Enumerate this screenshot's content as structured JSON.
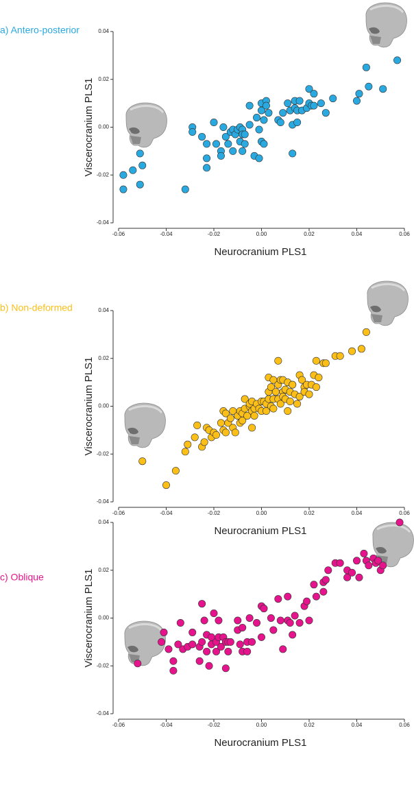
{
  "chart_data": [
    {
      "type": "scatter",
      "title": "a) Antero-posterior",
      "x_label": "Neurocranium PLS1",
      "y_label": "Viscerocranium PLS1",
      "color": "#29a9e0",
      "xlim": [
        -0.06,
        0.06
      ],
      "ylim": [
        -0.04,
        0.04
      ],
      "xticks": [
        -0.06,
        -0.04,
        -0.02,
        {
          "value": 0,
          "label": "0.00"
        },
        0.02,
        0.04,
        0.06
      ],
      "yticks": [
        -0.04,
        -0.02,
        {
          "value": 0,
          "label": "0.00"
        },
        0.02,
        0.04
      ],
      "x": [
        -0.058,
        -0.058,
        -0.054,
        -0.051,
        -0.051,
        -0.05,
        -0.032,
        -0.029,
        -0.029,
        -0.025,
        -0.023,
        -0.023,
        -0.023,
        -0.02,
        -0.019,
        -0.017,
        -0.016,
        -0.015,
        -0.014,
        -0.017,
        -0.013,
        -0.012,
        -0.012,
        -0.011,
        -0.01,
        -0.009,
        -0.009,
        -0.008,
        -0.008,
        -0.007,
        -0.007,
        -0.008,
        -0.005,
        -0.005,
        -0.003,
        -0.002,
        -0.001,
        -0.001,
        0,
        0,
        0.001,
        0,
        0.001,
        0.002,
        0.002,
        0.003,
        0.007,
        0.008,
        0.009,
        0.011,
        0.012,
        0.013,
        0.013,
        0.014,
        0.014,
        0.015,
        0.015,
        0.016,
        0.017,
        0.019,
        0.02,
        0.02,
        0.021,
        0.022,
        0.022,
        0.025,
        0.027,
        0.03,
        0.04,
        0.041,
        0.044,
        0.045,
        0.051,
        0.057
      ],
      "y": [
        -0.026,
        -0.02,
        -0.018,
        -0.011,
        -0.024,
        -0.016,
        -0.026,
        0,
        -0.002,
        -0.004,
        -0.007,
        -0.017,
        -0.013,
        0.002,
        -0.007,
        -0.01,
        0,
        -0.004,
        -0.007,
        -0.012,
        -0.002,
        -0.001,
        -0.01,
        -0.003,
        -0.001,
        -0.006,
        0,
        -0.001,
        -0.003,
        -0.003,
        -0.007,
        -0.01,
        0.009,
        0.001,
        -0.012,
        0.004,
        -0.001,
        -0.013,
        0.007,
        0.01,
        0.003,
        -0.006,
        -0.007,
        0.011,
        0.009,
        0.006,
        0.003,
        0.002,
        0.006,
        0.01,
        0.007,
        -0.011,
        0.001,
        0.008,
        0.011,
        0.002,
        0.007,
        0.011,
        0.007,
        0.008,
        0.016,
        0.01,
        0.009,
        0.014,
        0.009,
        0.01,
        0.006,
        0.012,
        0.011,
        0.014,
        0.025,
        0.017,
        0.016,
        0.028
      ]
    },
    {
      "type": "scatter",
      "title": "b) Non-deformed",
      "x_label": "Neurocranium PLS1",
      "y_label": "Viscerocranium PLS1",
      "color": "#fbbf17",
      "xlim": [
        -0.06,
        0.06
      ],
      "ylim": [
        -0.04,
        0.04
      ],
      "xticks": [
        -0.06,
        -0.04,
        -0.02,
        {
          "value": 0,
          "label": "0.00"
        },
        0.02,
        0.04,
        0.06
      ],
      "yticks": [
        -0.04,
        -0.02,
        {
          "value": 0,
          "label": "0.00"
        },
        0.02,
        0.04
      ],
      "x": [
        -0.05,
        -0.04,
        -0.036,
        -0.032,
        -0.031,
        -0.028,
        -0.027,
        -0.025,
        -0.024,
        -0.023,
        -0.022,
        -0.021,
        -0.02,
        -0.019,
        -0.017,
        -0.016,
        -0.015,
        -0.016,
        -0.015,
        -0.014,
        -0.013,
        -0.012,
        -0.012,
        -0.011,
        -0.01,
        -0.009,
        -0.009,
        -0.008,
        -0.008,
        -0.007,
        -0.007,
        -0.006,
        -0.005,
        -0.005,
        -0.004,
        -0.004,
        -0.004,
        -0.003,
        -0.003,
        -0.002,
        -0.001,
        0,
        0,
        0.001,
        0.002,
        0.002,
        0.003,
        0.003,
        0.003,
        0.004,
        0.004,
        0.005,
        0.005,
        0.005,
        0.006,
        0.007,
        0.007,
        0.007,
        0.008,
        0.008,
        0.009,
        0.009,
        0.009,
        0.01,
        0.01,
        0.011,
        0.011,
        0.012,
        0.012,
        0.013,
        0.013,
        0.014,
        0.015,
        0.016,
        0.016,
        0.017,
        0.018,
        0.018,
        0.019,
        0.02,
        0.021,
        0.022,
        0.023,
        0.023,
        0.024,
        0.026,
        0.027,
        0.031,
        0.033,
        0.038,
        0.042,
        0.044
      ],
      "y": [
        -0.023,
        -0.033,
        -0.027,
        -0.019,
        -0.016,
        -0.013,
        -0.008,
        -0.017,
        -0.015,
        -0.009,
        -0.01,
        -0.013,
        -0.011,
        -0.012,
        -0.007,
        -0.01,
        -0.011,
        -0.002,
        -0.003,
        -0.007,
        -0.005,
        -0.002,
        -0.009,
        -0.011,
        -0.004,
        -0.007,
        -0.002,
        -0.003,
        -0.006,
        0.003,
        -0.001,
        -0.004,
        0,
        0.001,
        -0.002,
        -0.009,
        0.002,
        -0.001,
        -0.004,
        0.001,
        -0.001,
        0.002,
        -0.002,
        0.002,
        0.001,
        -0.002,
        0.003,
        0.006,
        0.012,
        0.008,
        0,
        0.003,
        0.011,
        -0.001,
        0.006,
        0.003,
        0.019,
        0.009,
        0.001,
        0.011,
        0.006,
        0.004,
        0.011,
        0.007,
        0.003,
        -0.002,
        0.01,
        0.006,
        0.002,
        0.009,
        0.009,
        0.005,
        0.001,
        0.004,
        0.013,
        0.011,
        0.008,
        0.006,
        0.009,
        0.005,
        0.009,
        0.013,
        0.008,
        0.019,
        0.012,
        0.018,
        0.018,
        0.021,
        0.021,
        0.023,
        0.024,
        0.031
      ]
    },
    {
      "type": "scatter",
      "title": "c) Oblique",
      "x_label": "Neurocranium PLS1",
      "y_label": "Viscerocranium PLS1",
      "color": "#e6148c",
      "xlim": [
        -0.06,
        0.06
      ],
      "ylim": [
        -0.04,
        0.04
      ],
      "xticks": [
        -0.06,
        -0.04,
        -0.02,
        {
          "value": 0,
          "label": "0.00"
        },
        0.02,
        0.04,
        0.06
      ],
      "yticks": [
        -0.04,
        -0.02,
        {
          "value": 0,
          "label": "0.00"
        },
        0.02,
        0.04
      ],
      "x": [
        -0.052,
        -0.041,
        -0.042,
        -0.039,
        -0.037,
        -0.037,
        -0.035,
        -0.034,
        -0.033,
        -0.031,
        -0.029,
        -0.029,
        -0.026,
        -0.026,
        -0.025,
        -0.025,
        -0.024,
        -0.023,
        -0.023,
        -0.022,
        -0.021,
        -0.021,
        -0.02,
        -0.019,
        -0.019,
        -0.018,
        -0.018,
        -0.017,
        -0.016,
        -0.015,
        -0.015,
        -0.014,
        -0.014,
        -0.013,
        -0.01,
        -0.01,
        -0.009,
        -0.008,
        -0.008,
        -0.006,
        -0.006,
        -0.005,
        -0.004,
        -0.002,
        0,
        0,
        0.001,
        0.004,
        0.005,
        0.007,
        0.008,
        0.009,
        0.011,
        0.011,
        0.012,
        0.013,
        0.014,
        0.016,
        0.018,
        0.019,
        0.02,
        0.022,
        0.023,
        0.026,
        0.026,
        0.027,
        0.028,
        0.031,
        0.033,
        0.036,
        0.036,
        0.038,
        0.04,
        0.041,
        0.043,
        0.044,
        0.045,
        0.047,
        0.048,
        0.049,
        0.05,
        0.051,
        0.058
      ],
      "y": [
        -0.019,
        -0.006,
        -0.01,
        -0.013,
        -0.018,
        -0.022,
        -0.011,
        -0.002,
        -0.013,
        -0.012,
        -0.006,
        -0.011,
        -0.012,
        -0.018,
        -0.01,
        0.006,
        -0.001,
        -0.007,
        -0.014,
        -0.02,
        -0.011,
        -0.008,
        0.002,
        -0.014,
        -0.01,
        -0.008,
        -0.001,
        -0.012,
        -0.008,
        -0.01,
        -0.021,
        -0.014,
        -0.01,
        -0.01,
        -0.005,
        -0.001,
        -0.011,
        -0.014,
        -0.004,
        -0.01,
        -0.014,
        0,
        -0.01,
        -0.002,
        -0.008,
        0.005,
        0.004,
        0,
        -0.005,
        0.008,
        -0.001,
        -0.013,
        0.009,
        -0.001,
        -0.002,
        -0.007,
        0.001,
        -0.002,
        0.005,
        0.007,
        -0.001,
        0.014,
        0.009,
        0.011,
        0.015,
        0.016,
        0.02,
        0.023,
        0.023,
        0.02,
        0.017,
        0.019,
        0.024,
        0.017,
        0.027,
        0.024,
        0.022,
        0.025,
        0.023,
        0.024,
        0.02,
        0.022,
        0.04
      ]
    }
  ]
}
